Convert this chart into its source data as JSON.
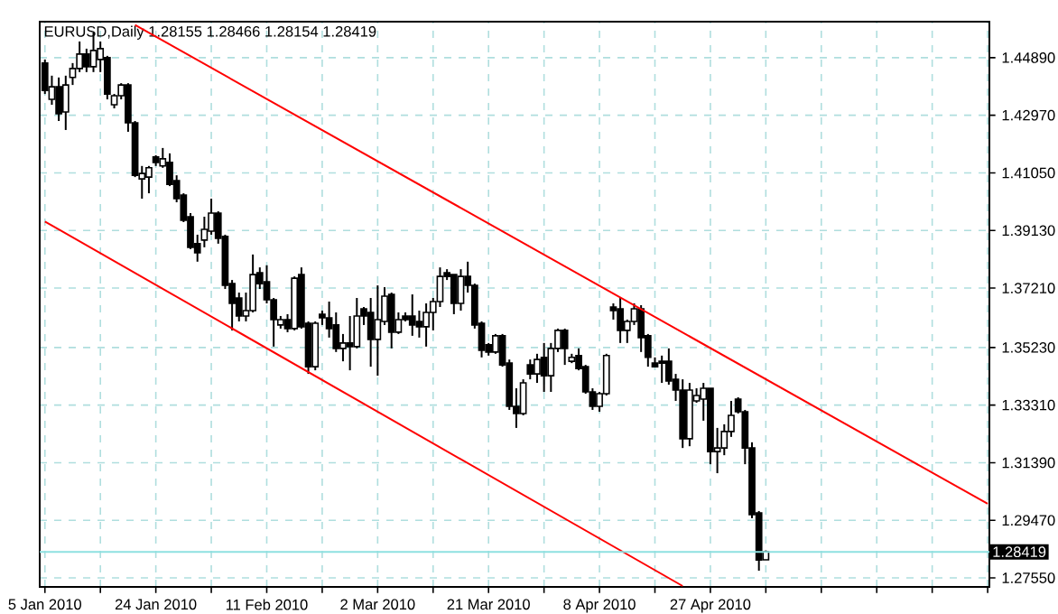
{
  "chart_data": {
    "type": "candlestick",
    "title": "EURUSD,Daily 1.28155 1.28466 1.28154 1.28419",
    "categories": [
      "5 Jan 2010",
      null,
      null,
      null,
      null,
      null,
      null,
      null,
      null,
      null,
      null,
      null,
      null,
      null,
      null,
      null,
      "24 Jan 2010",
      null,
      null,
      null,
      null,
      null,
      null,
      null,
      null,
      null,
      null,
      null,
      null,
      null,
      null,
      null,
      "11 Feb 2010",
      null,
      null,
      null,
      null,
      null,
      null,
      null,
      null,
      null,
      null,
      null,
      null,
      null,
      null,
      null,
      "2 Mar 2010",
      null,
      null,
      null,
      null,
      null,
      null,
      null,
      null,
      null,
      null,
      null,
      null,
      null,
      null,
      null,
      "21 Mar 2010",
      null,
      null,
      null,
      null,
      null,
      null,
      null,
      null,
      null,
      null,
      null,
      null,
      null,
      null,
      null,
      "8 Apr 2010",
      null,
      null,
      null,
      null,
      null,
      null,
      null,
      null,
      null,
      null,
      null,
      null,
      null,
      null,
      null,
      "27 Apr 2010",
      null,
      null,
      null,
      null,
      null,
      null,
      null,
      null,
      null,
      null,
      null,
      null,
      null,
      null,
      null,
      null,
      null,
      null,
      null,
      null,
      null,
      null,
      null,
      null,
      null,
      null,
      null,
      null,
      null,
      null,
      null,
      null,
      null,
      null,
      null,
      null,
      null,
      null,
      null,
      null
    ],
    "ohlc": [
      [
        1.4471,
        1.4483,
        1.4368,
        1.438
      ],
      [
        1.435,
        1.4429,
        1.4332,
        1.4392
      ],
      [
        1.4392,
        1.4423,
        1.4278,
        1.4302
      ],
      [
        1.4308,
        1.4429,
        1.4248,
        1.4398
      ],
      [
        1.4423,
        1.4471,
        1.4398,
        1.4453
      ],
      [
        1.4453,
        1.4543,
        1.4441,
        1.4501
      ],
      [
        1.4501,
        1.4519,
        1.4441,
        1.4459
      ],
      [
        1.4459,
        1.4573,
        1.4441,
        1.4513
      ],
      [
        1.4483,
        1.4543,
        1.4441,
        1.4519
      ],
      [
        1.4489,
        1.4495,
        1.435,
        1.4368
      ],
      [
        1.4332,
        1.4368,
        1.432,
        1.4362
      ],
      [
        1.4362,
        1.4404,
        1.435,
        1.4398
      ],
      [
        1.4398,
        1.4404,
        1.4242,
        1.4272
      ],
      [
        1.4272,
        1.4278,
        1.4091,
        1.4097
      ],
      [
        1.4085,
        1.4128,
        1.4019,
        1.4103
      ],
      [
        1.4091,
        1.4128,
        1.4037,
        1.4122
      ],
      [
        1.4158,
        1.4164,
        1.4128,
        1.414
      ],
      [
        1.4128,
        1.4188,
        1.4122,
        1.4152
      ],
      [
        1.414,
        1.417,
        1.4061,
        1.4067
      ],
      [
        1.4079,
        1.4097,
        1.4007,
        1.4019
      ],
      [
        1.4031,
        1.4037,
        1.3941,
        1.3947
      ],
      [
        1.3959,
        1.3971,
        1.3851,
        1.3857
      ],
      [
        1.3869,
        1.3899,
        1.3809,
        1.3839
      ],
      [
        1.3881,
        1.3959,
        1.3857,
        1.3917
      ],
      [
        1.3911,
        1.4019,
        1.3899,
        1.3971
      ],
      [
        1.3971,
        1.3977,
        1.3869,
        1.3887
      ],
      [
        1.3893,
        1.3899,
        1.3718,
        1.373
      ],
      [
        1.3736,
        1.3748,
        1.358,
        1.367
      ],
      [
        1.3688,
        1.3706,
        1.361,
        1.3628
      ],
      [
        1.3628,
        1.3706,
        1.361,
        1.3646
      ],
      [
        1.3646,
        1.3833,
        1.364,
        1.3766
      ],
      [
        1.3772,
        1.379,
        1.3718,
        1.3736
      ],
      [
        1.3742,
        1.3797,
        1.367,
        1.3682
      ],
      [
        1.3682,
        1.3688,
        1.3526,
        1.3616
      ],
      [
        1.3598,
        1.3628,
        1.3586,
        1.3616
      ],
      [
        1.3616,
        1.3634,
        1.3574,
        1.3586
      ],
      [
        1.3586,
        1.376,
        1.358,
        1.3754
      ],
      [
        1.3766,
        1.379,
        1.3586,
        1.3592
      ],
      [
        1.3604,
        1.361,
        1.3435,
        1.3459
      ],
      [
        1.3459,
        1.361,
        1.3447,
        1.3604
      ],
      [
        1.3634,
        1.3646,
        1.3598,
        1.3622
      ],
      [
        1.3622,
        1.3676,
        1.3556,
        1.3586
      ],
      [
        1.3598,
        1.364,
        1.3508,
        1.352
      ],
      [
        1.352,
        1.3568,
        1.3477,
        1.3538
      ],
      [
        1.3538,
        1.3628,
        1.3447,
        1.3526
      ],
      [
        1.3526,
        1.3688,
        1.352,
        1.3628
      ],
      [
        1.3652,
        1.3658,
        1.3598,
        1.3628
      ],
      [
        1.364,
        1.3688,
        1.3459,
        1.355
      ],
      [
        1.355,
        1.373,
        1.3429,
        1.3616
      ],
      [
        1.361,
        1.3724,
        1.3598,
        1.3694
      ],
      [
        1.37,
        1.3706,
        1.352,
        1.3574
      ],
      [
        1.3574,
        1.364,
        1.3568,
        1.3616
      ],
      [
        1.3628,
        1.364,
        1.361,
        1.3616
      ],
      [
        1.3628,
        1.37,
        1.3562,
        1.3598
      ],
      [
        1.361,
        1.3646,
        1.3556,
        1.3592
      ],
      [
        1.3592,
        1.367,
        1.3526,
        1.364
      ],
      [
        1.364,
        1.3688,
        1.358,
        1.3676
      ],
      [
        1.3676,
        1.379,
        1.3658,
        1.376
      ],
      [
        1.3772,
        1.3784,
        1.3748,
        1.376
      ],
      [
        1.3766,
        1.3766,
        1.3634,
        1.367
      ],
      [
        1.367,
        1.3784,
        1.3646,
        1.376
      ],
      [
        1.376,
        1.3809,
        1.3706,
        1.373
      ],
      [
        1.373,
        1.3736,
        1.3586,
        1.3598
      ],
      [
        1.3604,
        1.361,
        1.349,
        1.3514
      ],
      [
        1.3532,
        1.3538,
        1.3496,
        1.3508
      ],
      [
        1.3508,
        1.3568,
        1.3502,
        1.3562
      ],
      [
        1.3562,
        1.3568,
        1.3459,
        1.3465
      ],
      [
        1.3471,
        1.3483,
        1.3315,
        1.3327
      ],
      [
        1.3327,
        1.3387,
        1.3255,
        1.3303
      ],
      [
        1.3303,
        1.3417,
        1.3297,
        1.3405
      ],
      [
        1.3465,
        1.3483,
        1.3417,
        1.3435
      ],
      [
        1.3435,
        1.3502,
        1.3405,
        1.3483
      ],
      [
        1.349,
        1.3538,
        1.3375,
        1.3429
      ],
      [
        1.3429,
        1.3538,
        1.3375,
        1.352
      ],
      [
        1.352,
        1.3586,
        1.3508,
        1.358
      ],
      [
        1.358,
        1.3586,
        1.3465,
        1.352
      ],
      [
        1.3477,
        1.3502,
        1.3471,
        1.349
      ],
      [
        1.3496,
        1.352,
        1.3447,
        1.3453
      ],
      [
        1.3459,
        1.3465,
        1.3369,
        1.3375
      ],
      [
        1.3375,
        1.3387,
        1.3315,
        1.3327
      ],
      [
        1.3327,
        1.3375,
        1.3309,
        1.3369
      ],
      [
        1.3369,
        1.3502,
        1.3363,
        1.3496
      ],
      [
        1.3658,
        1.367,
        1.3616,
        1.3646
      ],
      [
        1.3652,
        1.3688,
        1.3538,
        1.358
      ],
      [
        1.358,
        1.3616,
        1.3538,
        1.361
      ],
      [
        1.361,
        1.367,
        1.3598,
        1.3652
      ],
      [
        1.3652,
        1.3664,
        1.3508,
        1.3556
      ],
      [
        1.3562,
        1.3568,
        1.3459,
        1.349
      ],
      [
        1.3471,
        1.349,
        1.3459,
        1.3459
      ],
      [
        1.3477,
        1.3496,
        1.3405,
        1.3471
      ],
      [
        1.3477,
        1.352,
        1.3399,
        1.3411
      ],
      [
        1.3417,
        1.3435,
        1.3345,
        1.3381
      ],
      [
        1.3381,
        1.3417,
        1.3188,
        1.3219
      ],
      [
        1.3219,
        1.3405,
        1.3194,
        1.3381
      ],
      [
        1.3345,
        1.3387,
        1.3339,
        1.3363
      ],
      [
        1.3351,
        1.3405,
        1.3279,
        1.3387
      ],
      [
        1.3387,
        1.3387,
        1.3134,
        1.3176
      ],
      [
        1.3176,
        1.3255,
        1.3104,
        1.3188
      ],
      [
        1.3188,
        1.3267,
        1.3164,
        1.3243
      ],
      [
        1.3243,
        1.3345,
        1.3225,
        1.3297
      ],
      [
        1.3351,
        1.3357,
        1.3303,
        1.3309
      ],
      [
        1.3309,
        1.3315,
        1.3134,
        1.3188
      ],
      [
        1.3188,
        1.3207,
        1.2954,
        1.2966
      ],
      [
        1.2972,
        1.2978,
        1.2779,
        1.2815
      ],
      [
        1.28155,
        1.28466,
        1.28154,
        1.28419
      ],
      null,
      null,
      null,
      null,
      null,
      null,
      null,
      null,
      null,
      null,
      null,
      null,
      null,
      null,
      null,
      null,
      null,
      null,
      null,
      null,
      null,
      null,
      null,
      null,
      null,
      null,
      null,
      null,
      null,
      null,
      null,
      null
    ],
    "series": [
      {
        "type": "line",
        "color": "#ff0000",
        "values": [
          null,
          null,
          null,
          null,
          null,
          null,
          null,
          null,
          null,
          null,
          null,
          null,
          null,
          1.4598,
          null,
          null,
          null,
          null,
          null,
          null,
          null,
          null,
          null,
          null,
          null,
          null,
          null,
          null,
          null,
          null,
          null,
          null,
          null,
          null,
          null,
          null,
          null,
          null,
          null,
          null,
          null,
          null,
          null,
          null,
          null,
          null,
          null,
          null,
          null,
          null,
          null,
          null,
          null,
          null,
          null,
          null,
          null,
          null,
          null,
          null,
          null,
          null,
          null,
          null,
          null,
          null,
          null,
          null,
          null,
          null,
          null,
          null,
          null,
          null,
          null,
          null,
          null,
          null,
          null,
          null,
          null,
          null,
          null,
          null,
          null,
          null,
          null,
          null,
          null,
          null,
          null,
          null,
          null,
          null,
          null,
          null,
          null,
          null,
          null,
          null,
          null,
          null,
          null,
          null,
          null,
          null,
          null,
          null,
          null,
          null,
          null,
          null,
          null,
          null,
          null,
          null,
          null,
          null,
          null,
          null,
          null,
          null,
          null,
          null,
          null,
          null,
          null,
          null,
          null,
          null,
          null,
          null,
          null,
          null,
          null,
          null,
          1.3002
        ]
      },
      {
        "type": "line",
        "color": "#ff0000",
        "values": [
          1.3943,
          null,
          null,
          null,
          null,
          null,
          null,
          null,
          null,
          null,
          null,
          null,
          null,
          null,
          null,
          null,
          null,
          null,
          null,
          null,
          null,
          null,
          null,
          null,
          null,
          null,
          null,
          null,
          null,
          null,
          null,
          null,
          null,
          null,
          null,
          null,
          null,
          null,
          null,
          null,
          null,
          null,
          null,
          null,
          null,
          null,
          null,
          null,
          null,
          null,
          null,
          null,
          null,
          null,
          null,
          null,
          null,
          null,
          null,
          null,
          null,
          null,
          null,
          null,
          null,
          null,
          null,
          null,
          null,
          null,
          null,
          null,
          null,
          null,
          null,
          null,
          null,
          null,
          null,
          null,
          null,
          null,
          null,
          null,
          null,
          null,
          null,
          null,
          null,
          null,
          null,
          null,
          1.2728,
          null,
          null,
          null,
          null,
          null,
          null,
          null,
          null,
          null,
          null,
          null,
          null,
          null,
          null,
          null,
          null,
          null,
          null,
          null,
          null,
          null,
          null,
          null,
          null,
          null,
          null,
          null,
          null,
          null,
          null,
          null,
          null,
          null,
          null,
          null,
          null,
          null,
          null,
          null,
          null,
          null,
          null,
          null,
          null
        ]
      }
    ],
    "ylim": [
      1.2725,
      1.4609
    ],
    "yticks": [
      {
        "value": 1.4489,
        "label": "1.44890"
      },
      {
        "value": 1.4297,
        "label": "1.42970"
      },
      {
        "value": 1.4105,
        "label": "1.41050"
      },
      {
        "value": 1.3913,
        "label": "1.39130"
      },
      {
        "value": 1.3721,
        "label": "1.37210"
      },
      {
        "value": 1.3523,
        "label": "1.35230"
      },
      {
        "value": 1.3331,
        "label": "1.33310"
      },
      {
        "value": 1.3139,
        "label": "1.31390"
      },
      {
        "value": 1.2947,
        "label": "1.29470"
      },
      {
        "value": 1.2755,
        "label": "1.27550"
      }
    ],
    "ref_lines": [
      {
        "axis": "y",
        "value": 1.28419,
        "label": "1.28419",
        "color": "#8ee0e0"
      }
    ],
    "grid": true
  }
}
